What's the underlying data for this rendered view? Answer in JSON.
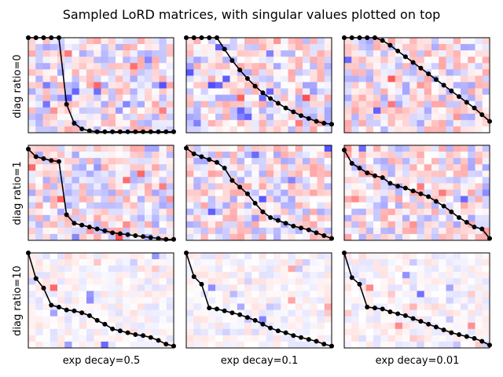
{
  "chart_data": {
    "type": "heatmap",
    "title": "Sampled LoRD matrices, with singular values plotted on top",
    "grid": false,
    "layout": "3x3 grid of subplots",
    "overlay_type": "line",
    "row_labels": [
      "diag ratio=0",
      "diag ratio=1",
      "diag ratio=10"
    ],
    "col_labels": [
      "exp decay=0.5",
      "exp decay=0.1",
      "exp decay=0.01"
    ],
    "colormap": "bwr",
    "colors": {
      "line": "#000000",
      "marker": "#000000",
      "positive": "#ff0000",
      "negative": "#0000ff",
      "neutral": "#ffffff"
    },
    "matrix_size": [
      15,
      20
    ],
    "singular_value_index": [
      0,
      1,
      2,
      3,
      4,
      5,
      6,
      7,
      8,
      9,
      10,
      11,
      12,
      13,
      14,
      15,
      16,
      17,
      18,
      19
    ],
    "panels": [
      {
        "row": 0,
        "col": 0,
        "singular_values": [
          1.0,
          1.0,
          1.0,
          1.0,
          1.0,
          0.3,
          0.1,
          0.04,
          0.02,
          0.01,
          0.01,
          0.01,
          0.01,
          0.01,
          0.01,
          0.01,
          0.01,
          0.01,
          0.01,
          0.01
        ]
      },
      {
        "row": 0,
        "col": 1,
        "singular_values": [
          1.0,
          1.0,
          1.0,
          1.0,
          1.0,
          0.88,
          0.76,
          0.66,
          0.57,
          0.49,
          0.42,
          0.36,
          0.31,
          0.26,
          0.22,
          0.18,
          0.15,
          0.12,
          0.1,
          0.09
        ]
      },
      {
        "row": 0,
        "col": 2,
        "singular_values": [
          1.0,
          1.0,
          1.0,
          1.0,
          1.0,
          0.97,
          0.92,
          0.86,
          0.8,
          0.74,
          0.68,
          0.62,
          0.56,
          0.5,
          0.44,
          0.38,
          0.32,
          0.26,
          0.19,
          0.12
        ]
      },
      {
        "row": 1,
        "col": 0,
        "singular_values": [
          0.96,
          0.88,
          0.86,
          0.84,
          0.83,
          0.27,
          0.18,
          0.16,
          0.14,
          0.12,
          0.1,
          0.08,
          0.07,
          0.06,
          0.05,
          0.04,
          0.03,
          0.02,
          0.01,
          0.01
        ]
      },
      {
        "row": 1,
        "col": 1,
        "singular_values": [
          0.97,
          0.91,
          0.88,
          0.85,
          0.82,
          0.76,
          0.63,
          0.56,
          0.49,
          0.39,
          0.3,
          0.24,
          0.21,
          0.18,
          0.15,
          0.13,
          0.11,
          0.08,
          0.05,
          0.02
        ]
      },
      {
        "row": 1,
        "col": 2,
        "singular_values": [
          0.95,
          0.81,
          0.76,
          0.71,
          0.68,
          0.66,
          0.6,
          0.57,
          0.55,
          0.52,
          0.49,
          0.46,
          0.41,
          0.36,
          0.3,
          0.24,
          0.19,
          0.14,
          0.12,
          0.02
        ]
      },
      {
        "row": 2,
        "col": 0,
        "singular_values": [
          1.0,
          0.73,
          0.63,
          0.45,
          0.43,
          0.4,
          0.39,
          0.37,
          0.34,
          0.29,
          0.25,
          0.2,
          0.18,
          0.16,
          0.14,
          0.13,
          0.11,
          0.08,
          0.04,
          0.02
        ]
      },
      {
        "row": 2,
        "col": 1,
        "singular_values": [
          1.0,
          0.75,
          0.67,
          0.42,
          0.41,
          0.39,
          0.37,
          0.35,
          0.32,
          0.29,
          0.25,
          0.21,
          0.18,
          0.16,
          0.13,
          0.11,
          0.09,
          0.07,
          0.04,
          0.02
        ]
      },
      {
        "row": 2,
        "col": 2,
        "singular_values": [
          1.0,
          0.74,
          0.67,
          0.43,
          0.42,
          0.41,
          0.38,
          0.36,
          0.34,
          0.31,
          0.28,
          0.25,
          0.22,
          0.19,
          0.16,
          0.14,
          0.12,
          0.1,
          0.07,
          0.03
        ]
      }
    ]
  }
}
